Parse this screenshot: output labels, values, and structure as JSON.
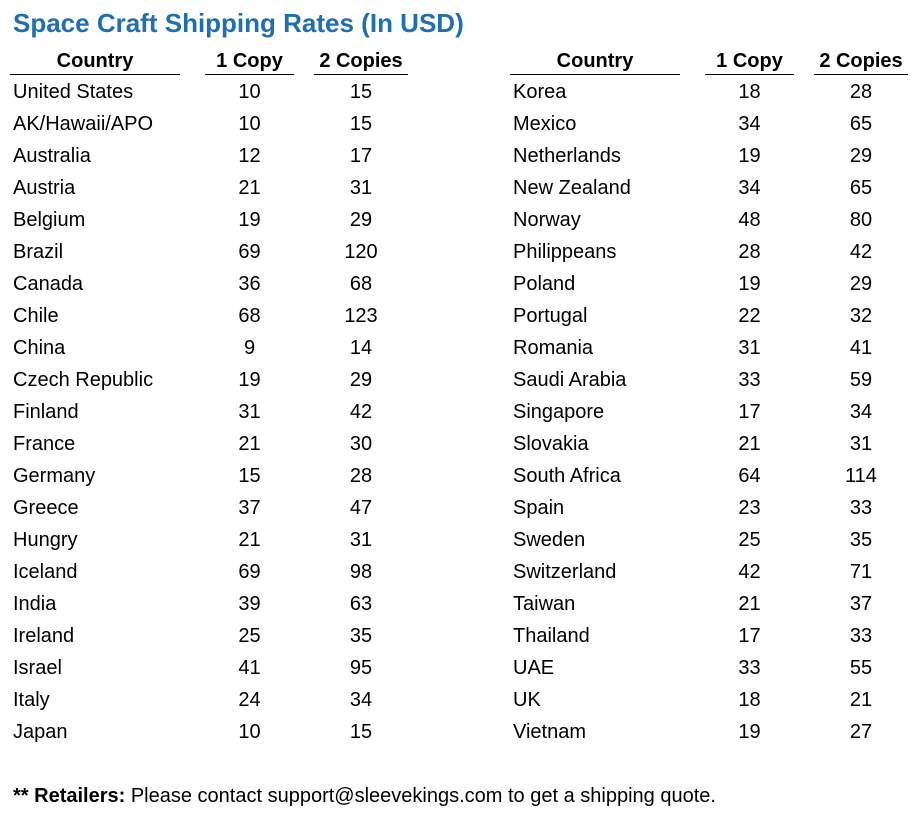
{
  "title": "Space Craft Shipping Rates (In USD)",
  "headers": {
    "country": "Country",
    "one": "1 Copy",
    "two": "2 Copies"
  },
  "left_rows": [
    [
      "United States",
      "10",
      "15"
    ],
    [
      "AK/Hawaii/APO",
      "10",
      "15"
    ],
    [
      "Australia",
      "12",
      "17"
    ],
    [
      "Austria",
      "21",
      "31"
    ],
    [
      "Belgium",
      "19",
      "29"
    ],
    [
      "Brazil",
      "69",
      "120"
    ],
    [
      "Canada",
      "36",
      "68"
    ],
    [
      "Chile",
      "68",
      "123"
    ],
    [
      "China",
      "9",
      "14"
    ],
    [
      "Czech Republic",
      "19",
      "29"
    ],
    [
      "Finland",
      "31",
      "42"
    ],
    [
      "France",
      "21",
      "30"
    ],
    [
      "Germany",
      "15",
      "28"
    ],
    [
      "Greece",
      "37",
      "47"
    ],
    [
      "Hungry",
      "21",
      "31"
    ],
    [
      "Iceland",
      "69",
      "98"
    ],
    [
      "India",
      "39",
      "63"
    ],
    [
      "Ireland",
      "25",
      "35"
    ],
    [
      "Israel",
      "41",
      "95"
    ],
    [
      "Italy",
      "24",
      "34"
    ],
    [
      "Japan",
      "10",
      "15"
    ]
  ],
  "right_rows": [
    [
      "Korea",
      "18",
      "28"
    ],
    [
      "Mexico",
      "34",
      "65"
    ],
    [
      "Netherlands",
      "19",
      "29"
    ],
    [
      "New Zealand",
      "34",
      "65"
    ],
    [
      "Norway",
      "48",
      "80"
    ],
    [
      "Philippeans",
      "28",
      "42"
    ],
    [
      "Poland",
      "19",
      "29"
    ],
    [
      "Portugal",
      "22",
      "32"
    ],
    [
      "Romania",
      "31",
      "41"
    ],
    [
      "Saudi Arabia",
      "33",
      "59"
    ],
    [
      "Singapore",
      "17",
      "34"
    ],
    [
      "Slovakia",
      "21",
      "31"
    ],
    [
      "South Africa",
      "64",
      "114"
    ],
    [
      "Spain",
      "23",
      "33"
    ],
    [
      "Sweden",
      "25",
      "35"
    ],
    [
      "Switzerland",
      "42",
      "71"
    ],
    [
      "Taiwan",
      "21",
      "37"
    ],
    [
      "Thailand",
      "17",
      "33"
    ],
    [
      "UAE",
      "33",
      "55"
    ],
    [
      "UK",
      "18",
      "21"
    ],
    [
      "Vietnam",
      "19",
      "27"
    ]
  ],
  "note": {
    "prefix": "** Retailers:",
    "text": " Please contact support@sleevekings.com to get a shipping quote."
  },
  "colors": {
    "title": "#1f6fb2"
  }
}
